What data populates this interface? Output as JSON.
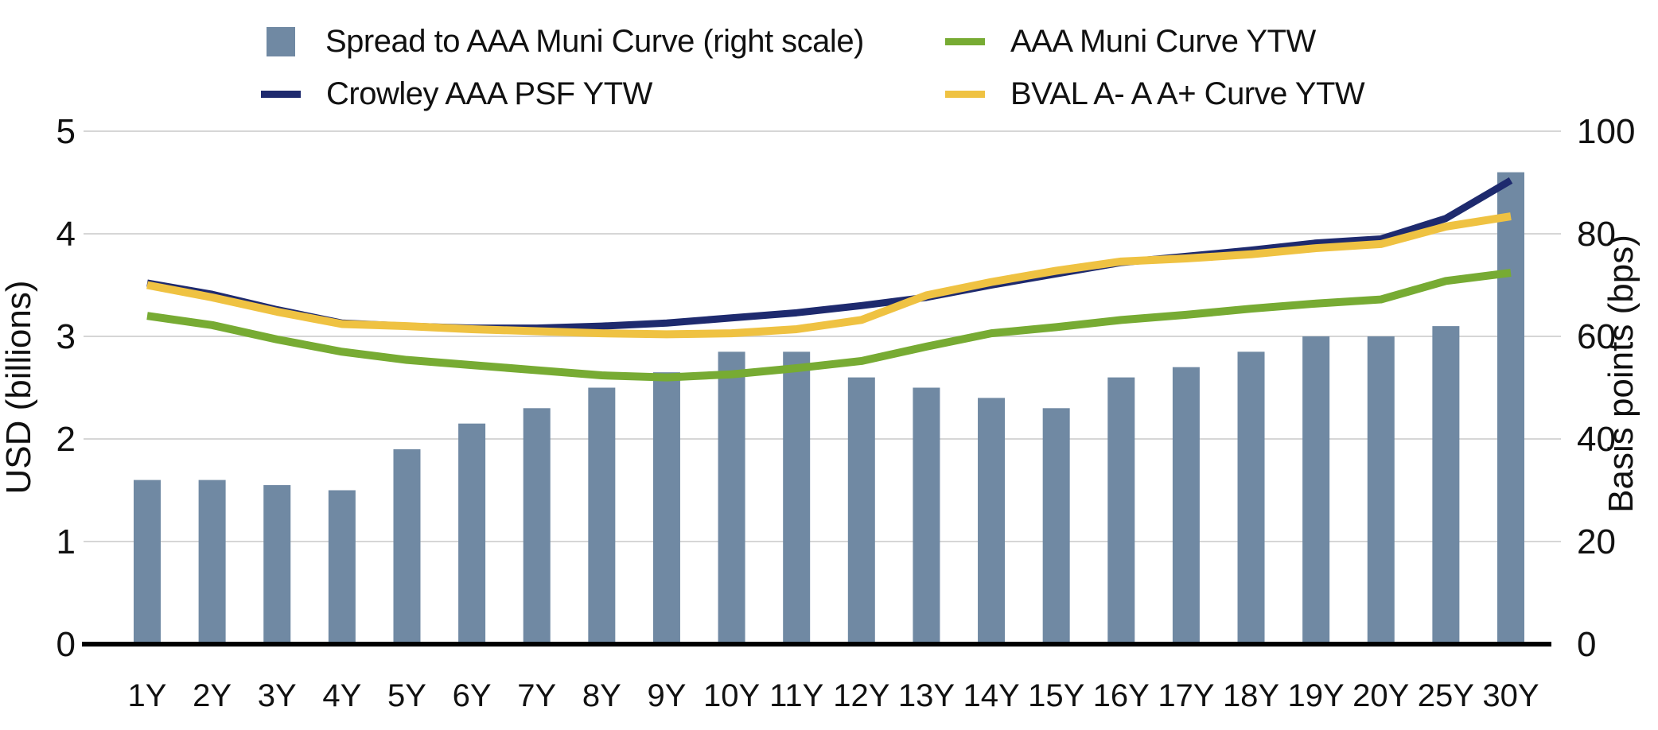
{
  "legend": {
    "items": [
      {
        "label": "Spread to AAA Muni Curve (right scale)",
        "marker": "square",
        "color": "#7089A3"
      },
      {
        "label": "Crowley AAA PSF YTW",
        "marker": "line",
        "color": "#1E2A6E"
      },
      {
        "label": "AAA Muni Curve YTW",
        "marker": "line",
        "color": "#77AB33"
      },
      {
        "label": "BVAL A- A A+ Curve YTW",
        "marker": "line",
        "color": "#EFC242"
      }
    ]
  },
  "chart_data": {
    "type": "bar",
    "subtype": "bar-line combo, dual axis",
    "categories": [
      "1Y",
      "2Y",
      "3Y",
      "4Y",
      "5Y",
      "6Y",
      "7Y",
      "8Y",
      "9Y",
      "10Y",
      "11Y",
      "12Y",
      "13Y",
      "14Y",
      "15Y",
      "16Y",
      "17Y",
      "18Y",
      "19Y",
      "20Y",
      "25Y",
      "30Y"
    ],
    "bar_series": {
      "name": "Spread to AAA Muni Curve (right scale)",
      "axis": "right",
      "unit": "bps",
      "color": "#7089A3",
      "values": [
        32,
        32,
        31,
        30,
        38,
        43,
        46,
        50,
        53,
        57,
        57,
        52,
        50,
        48,
        46,
        52,
        54,
        57,
        60,
        60,
        62,
        92
      ]
    },
    "line_series": [
      {
        "name": "Crowley AAA PSF YTW",
        "axis": "left",
        "color": "#1E2A6E",
        "stroke_width": 9,
        "values": [
          3.52,
          3.41,
          3.26,
          3.13,
          3.1,
          3.08,
          3.08,
          3.1,
          3.13,
          3.18,
          3.23,
          3.3,
          3.38,
          3.5,
          3.61,
          3.72,
          3.78,
          3.84,
          3.91,
          3.95,
          4.15,
          4.52
        ]
      },
      {
        "name": "BVAL A- A A+ Curve YTW",
        "axis": "left",
        "color": "#EFC242",
        "stroke_width": 10,
        "values": [
          3.5,
          3.38,
          3.24,
          3.12,
          3.1,
          3.07,
          3.05,
          3.03,
          3.02,
          3.03,
          3.07,
          3.16,
          3.4,
          3.53,
          3.64,
          3.73,
          3.76,
          3.8,
          3.86,
          3.9,
          4.07,
          4.17
        ]
      },
      {
        "name": "AAA Muni Curve YTW",
        "axis": "left",
        "color": "#77AB33",
        "stroke_width": 10,
        "values": [
          3.2,
          3.11,
          2.97,
          2.85,
          2.77,
          2.72,
          2.67,
          2.62,
          2.6,
          2.63,
          2.69,
          2.76,
          2.9,
          3.03,
          3.09,
          3.16,
          3.21,
          3.27,
          3.32,
          3.36,
          3.54,
          3.62
        ]
      }
    ],
    "left_axis": {
      "label": "USD (billions)",
      "min": 0,
      "max": 5,
      "ticks": [
        0,
        1,
        2,
        3,
        4,
        5
      ]
    },
    "right_axis": {
      "label": "Basis points (bps)",
      "min": 0,
      "max": 100,
      "ticks": [
        0,
        20,
        40,
        60,
        80,
        100
      ]
    },
    "grid": true,
    "gridline_color": "#D6D6D6",
    "legend_position": "top"
  }
}
